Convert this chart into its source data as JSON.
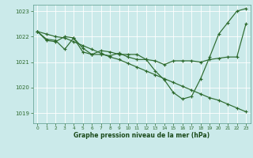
{
  "title": "Graphe pression niveau de la mer (hPa)",
  "background_color": "#cbeaea",
  "grid_color": "#aad4d4",
  "line_color": "#2d6a2d",
  "xlim": [
    -0.5,
    23.5
  ],
  "ylim": [
    1018.6,
    1023.25
  ],
  "yticks": [
    1019,
    1020,
    1021,
    1022,
    1023
  ],
  "xticks": [
    0,
    1,
    2,
    3,
    4,
    5,
    6,
    7,
    8,
    9,
    10,
    11,
    12,
    13,
    14,
    15,
    16,
    17,
    18,
    19,
    20,
    21,
    22,
    23
  ],
  "series": [
    [
      1022.2,
      1021.85,
      1021.8,
      1022.0,
      1021.95,
      1021.55,
      1021.3,
      1021.3,
      1021.25,
      1021.35,
      1021.2,
      1021.1,
      1021.1,
      1021.05,
      1020.9,
      1021.05,
      1021.05,
      1021.05,
      1021.0,
      1021.1,
      1021.15,
      1021.2,
      1021.2,
      1022.5
    ],
    [
      1022.2,
      1021.9,
      1021.85,
      1021.5,
      1021.95,
      1021.4,
      1021.3,
      1021.45,
      1021.4,
      1021.3,
      1021.3,
      1021.3,
      1021.1,
      1020.65,
      1020.3,
      1019.8,
      1019.55,
      1019.65,
      1020.35,
      1021.2,
      1022.1,
      1022.55,
      1023.0,
      1023.1
    ],
    [
      1022.2,
      1022.1,
      1022.0,
      1021.95,
      1021.8,
      1021.65,
      1021.5,
      1021.35,
      1021.2,
      1021.1,
      1020.95,
      1020.8,
      1020.65,
      1020.5,
      1020.35,
      1020.2,
      1020.05,
      1019.9,
      1019.75,
      1019.6,
      1019.5,
      1019.35,
      1019.2,
      1019.05
    ]
  ]
}
